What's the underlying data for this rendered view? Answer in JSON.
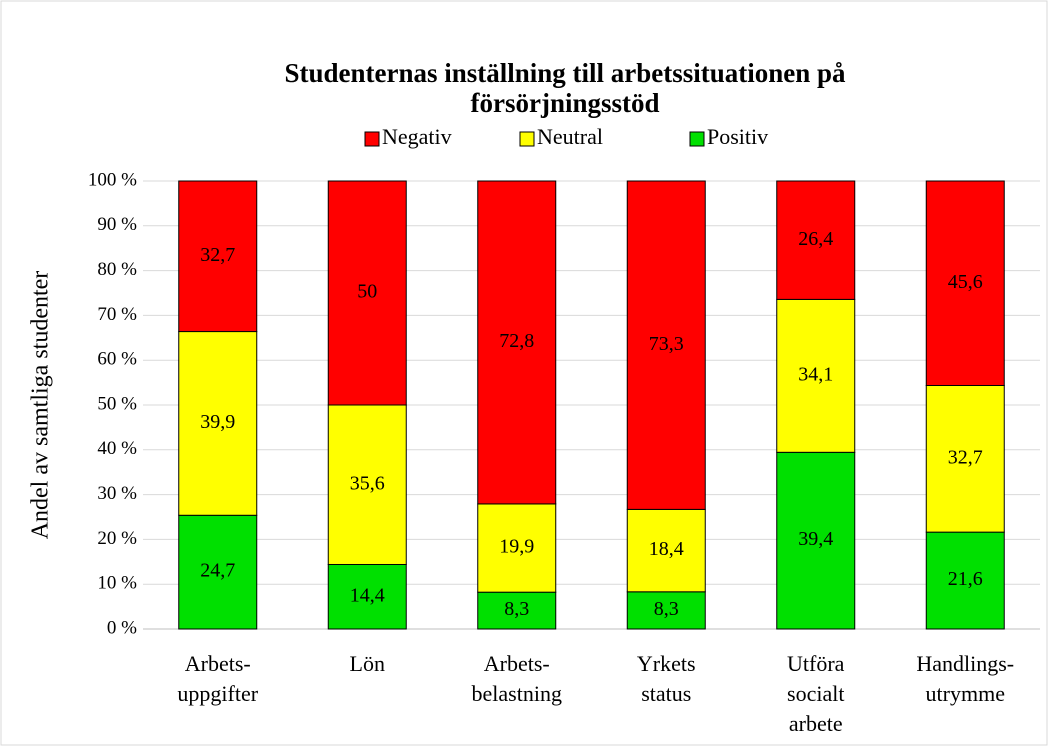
{
  "chart_data": {
    "type": "bar",
    "stacking": "percent",
    "title": [
      "Studenternas inställning till arbetssituationen på",
      "försörjningsstöd"
    ],
    "y_label": "Andel av samtliga studenter",
    "categories": [
      [
        "Arbets-",
        "uppgifter"
      ],
      [
        "Lön"
      ],
      [
        "Arbets-",
        "belastning"
      ],
      [
        "Yrkets",
        "status"
      ],
      [
        "Utföra",
        "socialt",
        "arbete"
      ],
      [
        "Handlings-",
        "utrymme"
      ]
    ],
    "series": [
      {
        "name": "Positiv",
        "color": "#00e000",
        "values": [
          24.7,
          14.4,
          8.3,
          8.3,
          39.4,
          21.6
        ],
        "value_labels": [
          "24,7",
          "14,4",
          "8,3",
          "8,3",
          "39,4",
          "21,6"
        ]
      },
      {
        "name": "Neutral",
        "color": "#ffff00",
        "values": [
          39.9,
          35.6,
          19.9,
          18.4,
          34.1,
          32.7
        ],
        "value_labels": [
          "39,9",
          "35,6",
          "19,9",
          "18,4",
          "34,1",
          "32,7"
        ]
      },
      {
        "name": "Negativ",
        "color": "#ff0000",
        "values": [
          32.7,
          50,
          72.8,
          73.3,
          26.4,
          45.6
        ],
        "value_labels": [
          "32,7",
          "50",
          "72,8",
          "73,3",
          "26,4",
          "45,6"
        ]
      }
    ],
    "ylim": [
      0,
      100
    ],
    "yticks": [
      {
        "value": 0,
        "label": "0 %"
      },
      {
        "value": 10,
        "label": "10 %"
      },
      {
        "value": 20,
        "label": "20 %"
      },
      {
        "value": 30,
        "label": "30 %"
      },
      {
        "value": 40,
        "label": "40 %"
      },
      {
        "value": 50,
        "label": "50 %"
      },
      {
        "value": 60,
        "label": "60 %"
      },
      {
        "value": 70,
        "label": "70 %"
      },
      {
        "value": 80,
        "label": "80 %"
      },
      {
        "value": 90,
        "label": "90 %"
      },
      {
        "value": 100,
        "label": "100 %"
      }
    ],
    "grid": true,
    "legend": "top"
  }
}
